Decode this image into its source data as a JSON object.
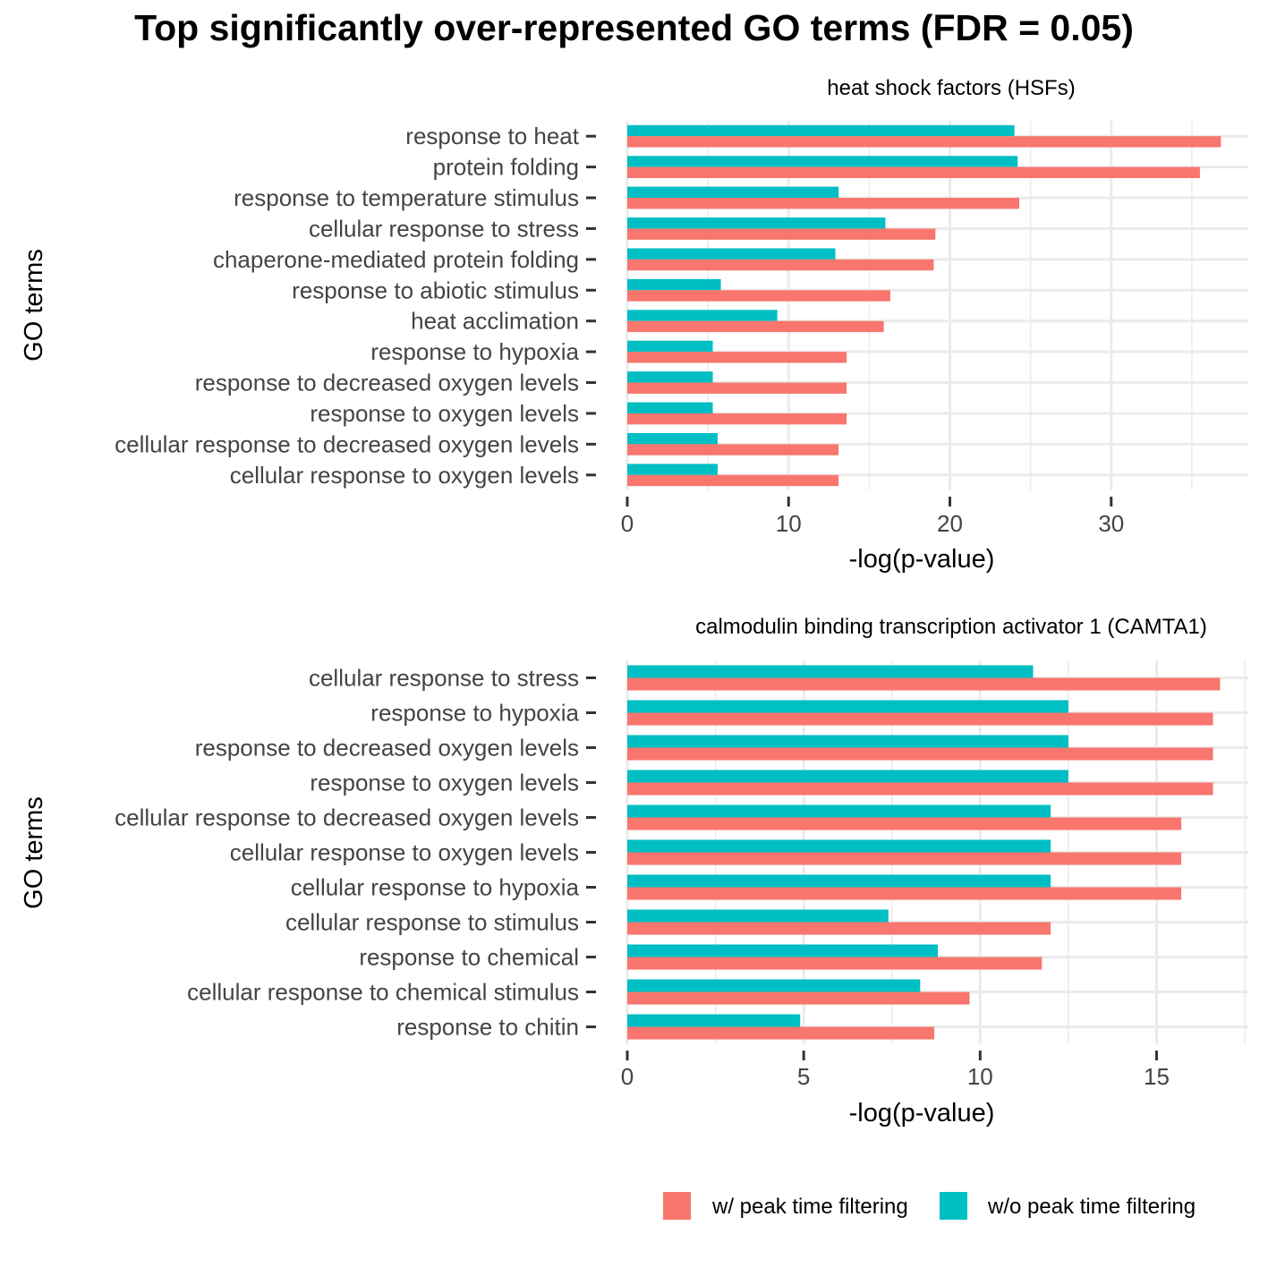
{
  "title": "Top significantly over-represented GO terms (FDR = 0.05)",
  "colors": {
    "with_filter": "#F8766D",
    "without_filter": "#00BFC4",
    "grid": "#EBEBEB"
  },
  "legend": {
    "items": [
      {
        "label": "w/ peak time filtering",
        "color": "#F8766D"
      },
      {
        "label": "w/o peak time filtering",
        "color": "#00BFC4"
      }
    ]
  },
  "chart_data": [
    {
      "type": "bar",
      "orientation": "horizontal",
      "title": "heat shock factors (HSFs)",
      "xlabel": "-log(p-value)",
      "ylabel": "GO terms",
      "xlim": [
        0,
        38.5
      ],
      "xticks": [
        0,
        10,
        20,
        30
      ],
      "categories": [
        "response to heat",
        "protein folding",
        "response to temperature stimulus",
        "cellular response to stress",
        "chaperone-mediated protein folding",
        "response to abiotic stimulus",
        "heat acclimation",
        "response to hypoxia",
        "response to decreased oxygen levels",
        "response to oxygen levels",
        "cellular response to decreased oxygen levels",
        "cellular response to oxygen levels"
      ],
      "series": [
        {
          "name": "w/ peak time filtering",
          "values": [
            36.8,
            35.5,
            24.3,
            19.1,
            19.0,
            16.3,
            15.9,
            13.6,
            13.6,
            13.6,
            13.1,
            13.1
          ]
        },
        {
          "name": "w/o peak time filtering",
          "values": [
            24.0,
            24.2,
            13.1,
            16.0,
            12.9,
            5.8,
            9.3,
            5.3,
            5.3,
            5.3,
            5.6,
            5.6
          ]
        }
      ],
      "grid": true,
      "legend": "bottom"
    },
    {
      "type": "bar",
      "orientation": "horizontal",
      "title": "calmodulin binding transcription activator 1 (CAMTA1)",
      "xlabel": "-log(p-value)",
      "ylabel": "GO terms",
      "xlim": [
        0,
        17.6
      ],
      "xticks": [
        0,
        5,
        10,
        15
      ],
      "categories": [
        "cellular response to stress",
        "response to hypoxia",
        "response to decreased oxygen levels",
        "response to oxygen levels",
        "cellular response to decreased oxygen levels",
        "cellular response to oxygen levels",
        "cellular response to hypoxia",
        "cellular response to stimulus",
        "response to chemical",
        "cellular response to chemical stimulus",
        "response to chitin"
      ],
      "series": [
        {
          "name": "w/ peak time filtering",
          "values": [
            16.8,
            16.6,
            16.6,
            16.6,
            15.7,
            15.7,
            15.7,
            12.0,
            11.75,
            9.7,
            8.7
          ]
        },
        {
          "name": "w/o peak time filtering",
          "values": [
            11.5,
            12.5,
            12.5,
            12.5,
            12.0,
            12.0,
            12.0,
            7.4,
            8.8,
            8.3,
            4.9
          ]
        }
      ],
      "grid": true,
      "legend": "bottom"
    }
  ]
}
